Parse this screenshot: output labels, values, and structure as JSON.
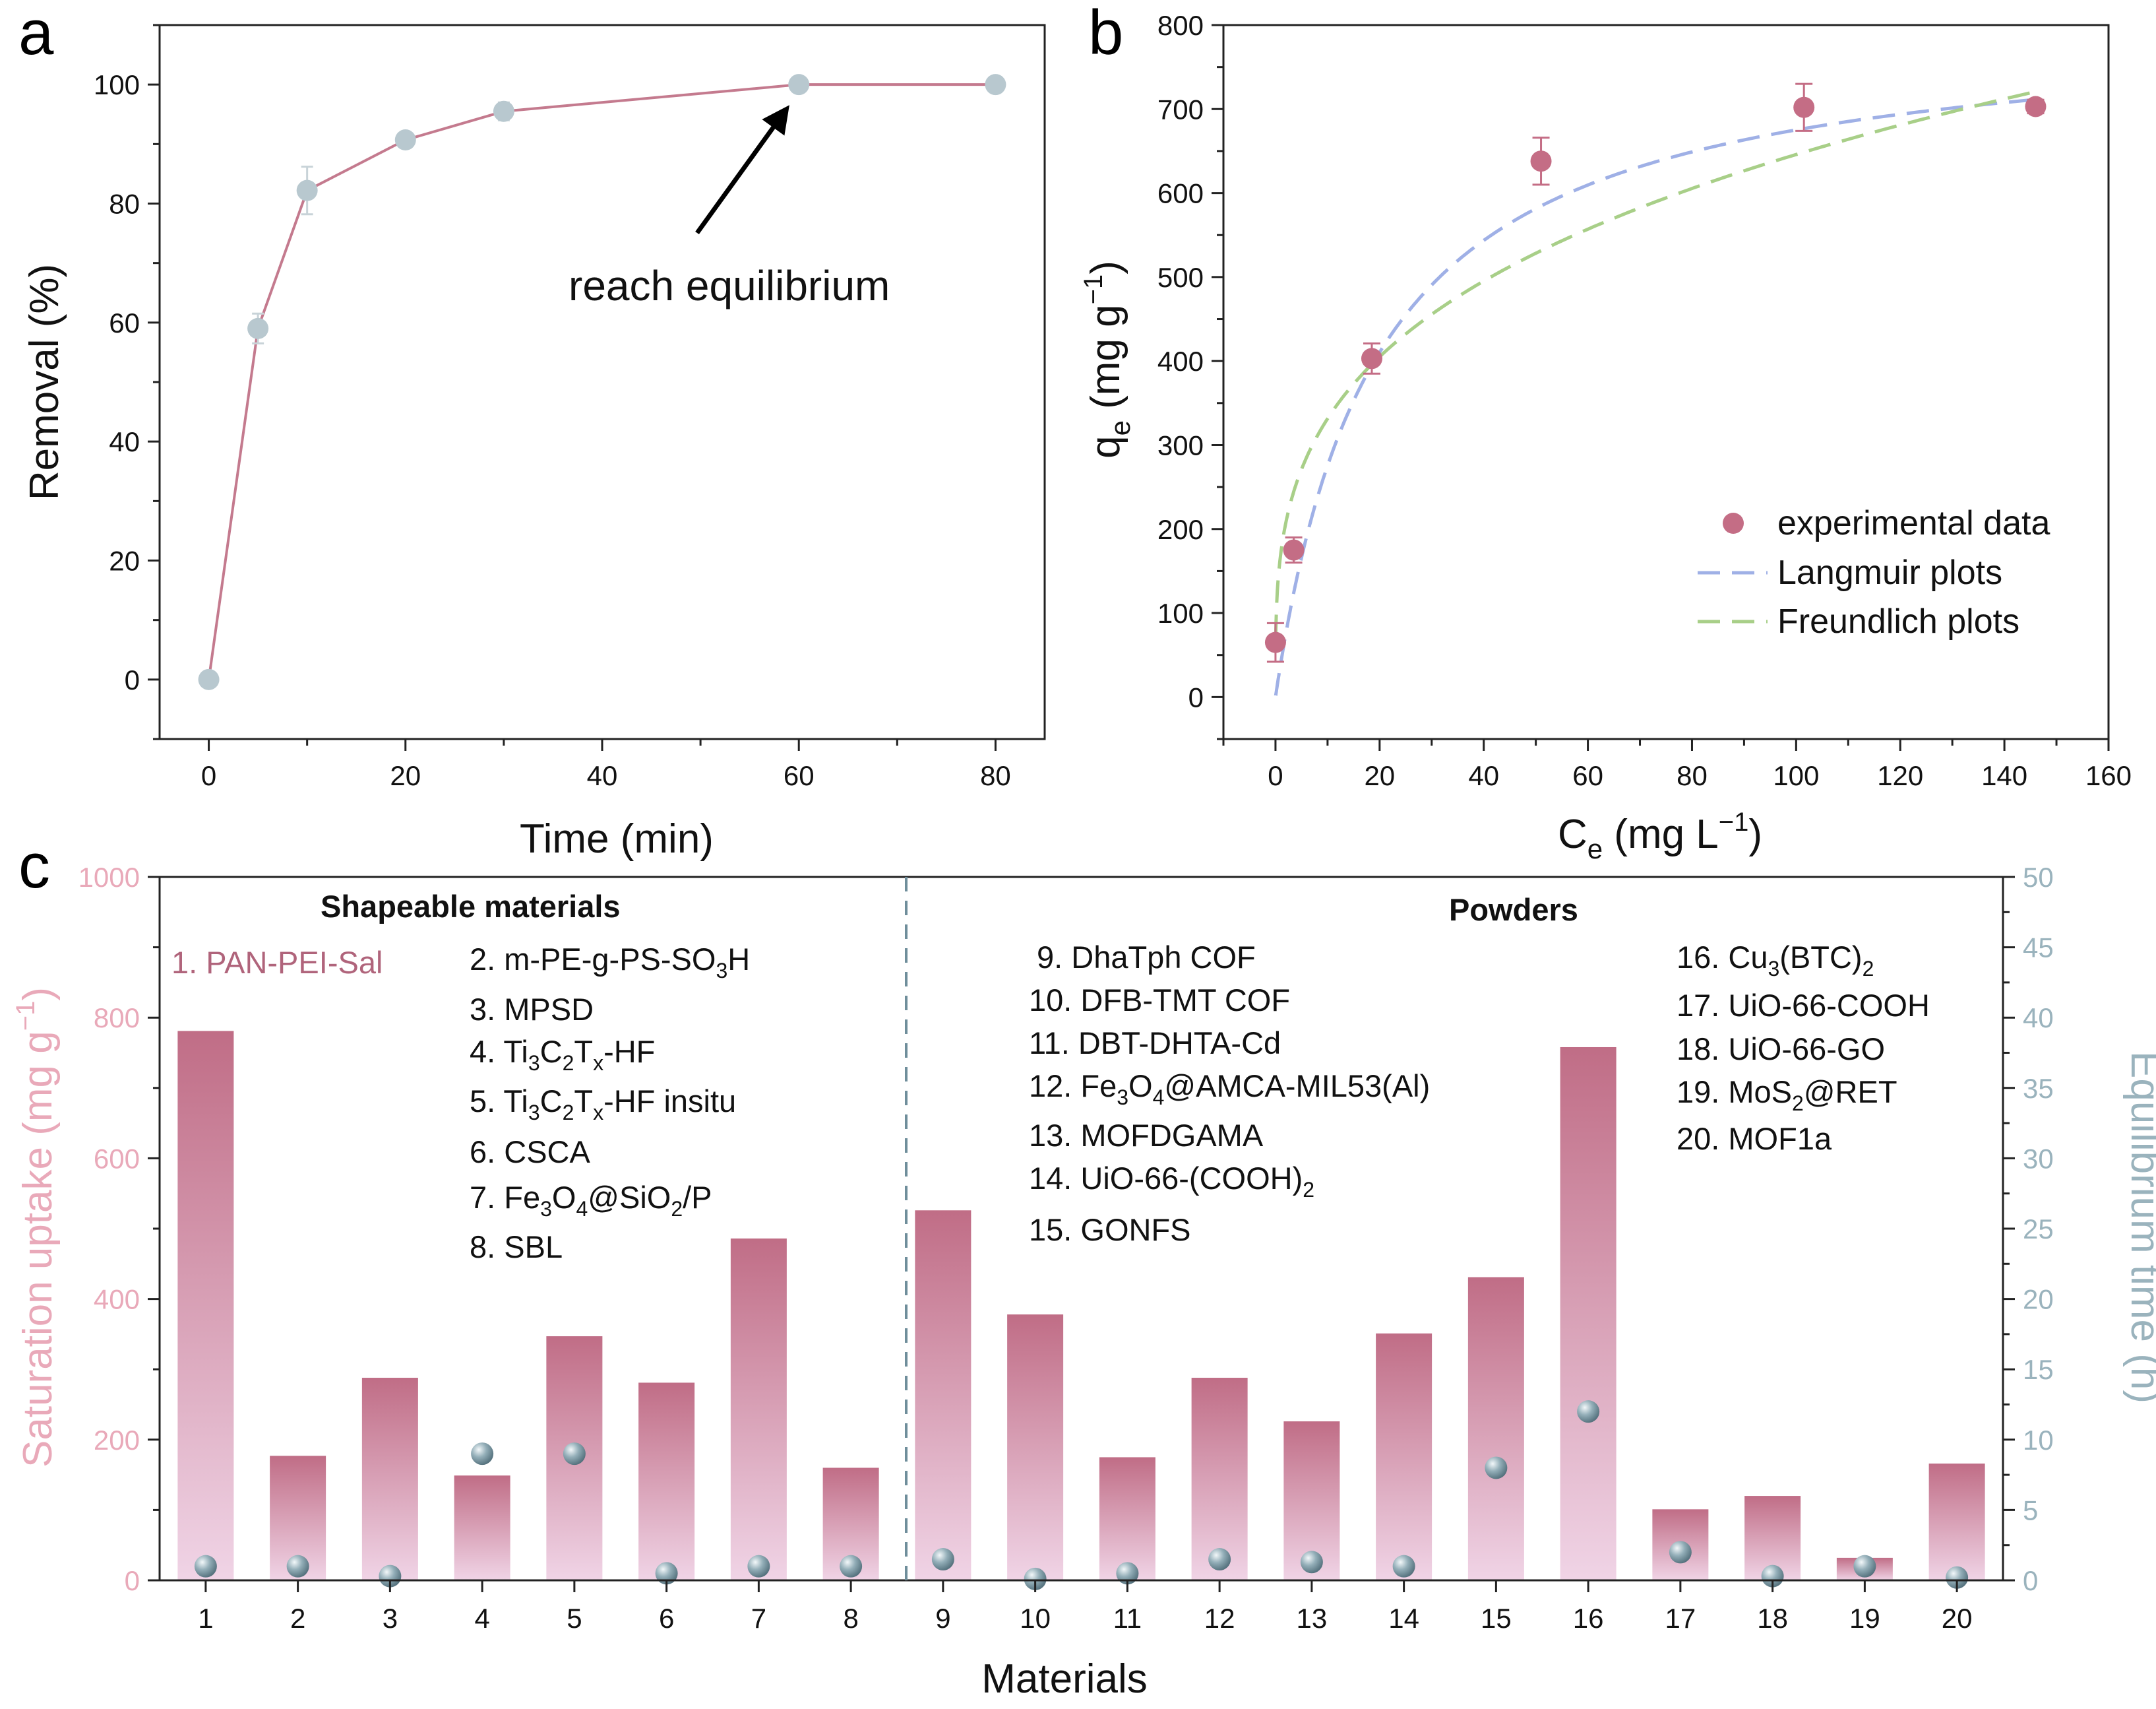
{
  "colors": {
    "line_pink": "#c47a8e",
    "marker_grey": "#b8c8cf",
    "marker_pink": "#c46d85",
    "langmuir": "#9fb0e6",
    "freundlich": "#a8cf88",
    "bar_top": "#c06d86",
    "bar_bottom": "#f0d4e6",
    "left_axis_c": "#e9a9b9",
    "right_axis_c": "#9ab3bd",
    "sphere": "#7d9aa5"
  },
  "chart_data": [
    {
      "panel": "a",
      "type": "line",
      "xlabel": "Time (min)",
      "ylabel": "Removal (%)",
      "xlim": [
        -5,
        85
      ],
      "ylim": [
        -10,
        110
      ],
      "xticks": [
        0,
        20,
        40,
        60,
        80
      ],
      "yticks": [
        0,
        20,
        40,
        60,
        80,
        100
      ],
      "x": [
        0,
        5,
        10,
        20,
        30,
        60,
        80
      ],
      "y": [
        0,
        59,
        82.2,
        90.7,
        95.5,
        100,
        100
      ],
      "err": [
        0,
        2.5,
        4,
        0,
        1.5,
        0,
        0
      ],
      "annotation": "reach equilibrium",
      "annotation_target": [
        60,
        100
      ]
    },
    {
      "panel": "b",
      "type": "scatter",
      "xlabel": "C",
      "xlabel_sub": "e",
      "xlabel_unit": " (mg L",
      "xlabel_sup": "−1",
      "xlabel_end": ")",
      "ylabel": "q",
      "ylabel_sub": "e",
      "ylabel_unit": " (mg g",
      "ylabel_sup": "−1",
      "ylabel_end": ")",
      "xlim": [
        -10,
        160
      ],
      "ylim": [
        -50,
        800
      ],
      "xticks": [
        0,
        20,
        40,
        60,
        80,
        100,
        120,
        140,
        160
      ],
      "yticks": [
        0,
        100,
        200,
        300,
        400,
        500,
        600,
        700,
        800
      ],
      "series": [
        {
          "name": "experimental data",
          "x": [
            0,
            3.5,
            18.5,
            51,
            101.5,
            146
          ],
          "y": [
            65,
            175,
            403,
            638,
            702,
            703
          ],
          "err": [
            23,
            15,
            18,
            28,
            28,
            8
          ]
        },
        {
          "name": "Langmuir plots",
          "model": "langmuir",
          "qmax": 805,
          "KL": 0.052
        },
        {
          "name": "Freundlich plots",
          "model": "freundlich",
          "KF": 170,
          "n": 3.45
        }
      ]
    },
    {
      "panel": "c",
      "type": "bar",
      "xlabel": "Materials",
      "ylabel_left": "Saturation uptake (mg g",
      "ylabel_left_sup": "−1",
      "ylabel_left_end": ")",
      "ylabel_right": "Equilibrium time (h)",
      "categories": [
        "1",
        "2",
        "3",
        "4",
        "5",
        "6",
        "7",
        "8",
        "9",
        "10",
        "11",
        "12",
        "13",
        "14",
        "15",
        "16",
        "17",
        "18",
        "19",
        "20"
      ],
      "ylim_left": [
        0,
        1000
      ],
      "yticks_left": [
        0,
        200,
        400,
        600,
        800,
        1000
      ],
      "ylim_right": [
        0,
        50
      ],
      "yticks_right": [
        0,
        5,
        10,
        15,
        20,
        25,
        30,
        35,
        40,
        45,
        50
      ],
      "series": [
        {
          "name": "Saturation uptake",
          "axis": "left",
          "values": [
            781,
            177,
            288,
            149,
            347,
            281,
            486,
            160,
            526,
            378,
            175,
            288,
            226,
            351,
            431,
            758,
            101,
            120,
            32,
            166
          ]
        },
        {
          "name": "Equilibrium time",
          "axis": "right",
          "values": [
            1,
            1,
            0.3,
            9,
            9,
            0.5,
            1,
            1,
            1.5,
            0.1,
            0.5,
            1.5,
            1.3,
            1,
            8,
            12,
            2,
            0.3,
            1,
            0.2
          ]
        }
      ],
      "groups": [
        "Shapeable materials",
        "Powders"
      ],
      "divider_after": 8
    }
  ],
  "panel_labels": [
    "a",
    "b",
    "c"
  ],
  "materials_list": {
    "m1": "1. PAN-PEI-Sal",
    "m2": {
      "pre": "2. m-PE-g-PS-SO",
      "sub": "3",
      "post": "H"
    },
    "m3": "3. MPSD",
    "m4": {
      "pre": "4. Ti",
      "s1": "3",
      "mid1": "C",
      "s2": "2",
      "mid2": "T",
      "s3": "x",
      "post": "-HF"
    },
    "m5": {
      "pre": "5. Ti",
      "s1": "3",
      "mid1": "C",
      "s2": "2",
      "mid2": "T",
      "s3": "x",
      "post": "-HF insitu"
    },
    "m6": "6. CSCA",
    "m7": {
      "pre": "7. Fe",
      "s1": "3",
      "mid1": "O",
      "s2": "4",
      "mid2": "@SiO",
      "s3": "2",
      "post": "/P"
    },
    "m8": "8. SBL",
    "m9": "9. DhaTph COF",
    "m10": "10. DFB-TMT COF",
    "m11": "11. DBT-DHTA-Cd",
    "m12": {
      "pre": "12. Fe",
      "s1": "3",
      "mid1": "O",
      "s2": "4",
      "post": "@AMCA-MIL53(Al)"
    },
    "m13": "13. MOFDGAMA",
    "m14": {
      "pre": "14. UiO-66-(COOH)",
      "sub": "2"
    },
    "m15": "15. GONFS",
    "m16": {
      "pre": "16. Cu",
      "sub": "3",
      "post": "(BTC)",
      "sub2": "2"
    },
    "m17": "17. UiO-66-COOH",
    "m18": "18. UiO-66-GO",
    "m19": {
      "pre": "19. MoS",
      "sub": "2",
      "post": "@RET"
    },
    "m20": "20. MOF1a"
  }
}
